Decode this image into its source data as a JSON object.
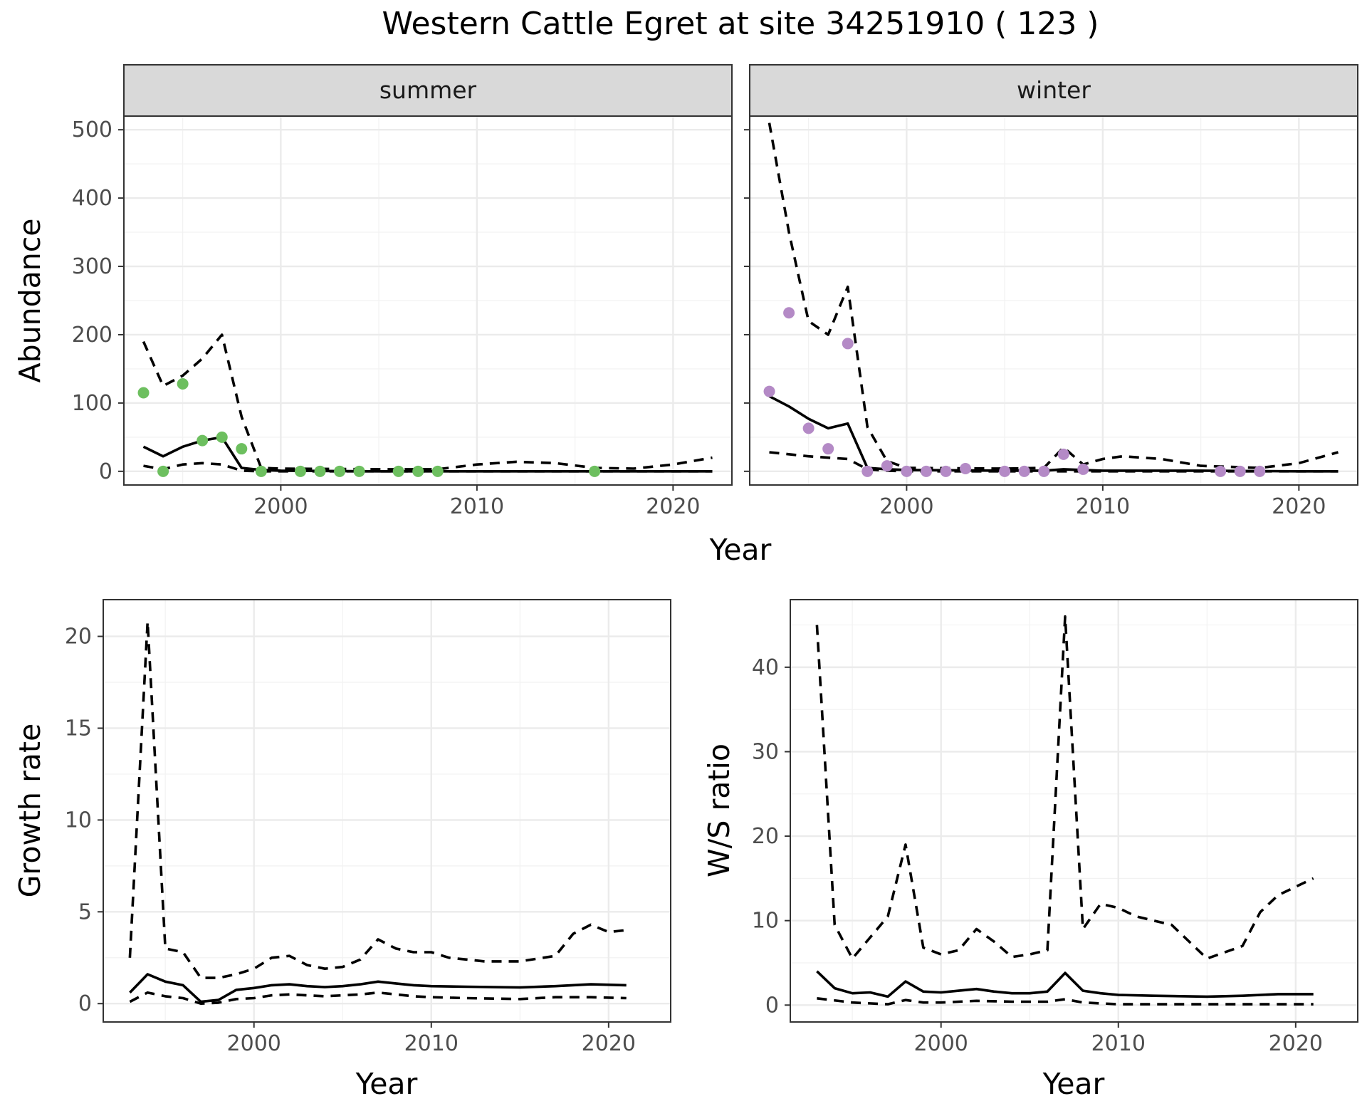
{
  "figure": {
    "title": "Western Cattle Egret at site 34251910 ( 123 )"
  },
  "chart_data": [
    {
      "type": "line",
      "panel": "summer",
      "facet_label": "summer",
      "xlabel": "Year",
      "ylabel": "Abundance",
      "xlim": [
        1992,
        2023
      ],
      "ylim": [
        -20,
        520
      ],
      "x_ticks": [
        2000,
        2010,
        2020
      ],
      "y_ticks": [
        0,
        100,
        200,
        300,
        400,
        500
      ],
      "grid": true,
      "point_color": "#6dbf5f",
      "series": [
        {
          "style": "solid",
          "x": [
            1993,
            1994,
            1995,
            1996,
            1997,
            1998,
            1999,
            2000,
            2005,
            2010,
            2015,
            2020,
            2022
          ],
          "y": [
            36,
            22,
            36,
            45,
            50,
            5,
            2,
            1,
            0,
            0,
            0,
            0,
            0
          ]
        },
        {
          "style": "dashed",
          "x": [
            1993,
            1994,
            1995,
            1996,
            1997,
            1998,
            1999,
            2000,
            2005,
            2008,
            2010,
            2012,
            2014,
            2016,
            2018,
            2020,
            2022
          ],
          "y": [
            190,
            125,
            140,
            165,
            200,
            80,
            5,
            4,
            3,
            3,
            10,
            14,
            12,
            5,
            4,
            10,
            20
          ]
        },
        {
          "style": "dashed",
          "x": [
            1993,
            1994,
            1995,
            1996,
            1997,
            1998,
            1999,
            2000,
            2010,
            2022
          ],
          "y": [
            8,
            3,
            10,
            12,
            10,
            1,
            0,
            0,
            0,
            0
          ]
        },
        {
          "style": "points",
          "x": [
            1993,
            1994,
            1995,
            1996,
            1997,
            1998,
            1999,
            2001,
            2002,
            2003,
            2004,
            2006,
            2007,
            2008,
            2016
          ],
          "y": [
            115,
            0,
            128,
            45,
            50,
            33,
            0,
            0,
            0,
            0,
            0,
            0,
            0,
            0,
            0
          ]
        }
      ]
    },
    {
      "type": "line",
      "panel": "winter",
      "facet_label": "winter",
      "xlabel": "Year",
      "ylabel": "Abundance",
      "xlim": [
        1992,
        2023
      ],
      "ylim": [
        -20,
        520
      ],
      "x_ticks": [
        2000,
        2010,
        2020
      ],
      "y_ticks": [
        0,
        100,
        200,
        300,
        400,
        500
      ],
      "grid": true,
      "point_color": "#b48ac6",
      "series": [
        {
          "style": "solid",
          "x": [
            1993,
            1994,
            1995,
            1996,
            1997,
            1998,
            1999,
            2000,
            2005,
            2007,
            2008,
            2009,
            2010,
            2015,
            2020,
            2022
          ],
          "y": [
            110,
            95,
            77,
            63,
            70,
            5,
            3,
            2,
            1,
            1,
            3,
            2,
            1,
            1,
            0,
            0
          ]
        },
        {
          "style": "dashed",
          "x": [
            1993,
            1994,
            1995,
            1996,
            1997,
            1998,
            1999,
            2000,
            2005,
            2007,
            2008,
            2009,
            2010,
            2011,
            2013,
            2015,
            2018,
            2020,
            2022
          ],
          "y": [
            510,
            350,
            220,
            200,
            270,
            65,
            15,
            5,
            4,
            5,
            35,
            10,
            18,
            22,
            18,
            8,
            5,
            12,
            28
          ]
        },
        {
          "style": "dashed",
          "x": [
            1993,
            1995,
            1997,
            1998,
            1999,
            2000,
            2010,
            2022
          ],
          "y": [
            28,
            22,
            18,
            3,
            1,
            0,
            0,
            0
          ]
        },
        {
          "style": "points",
          "x": [
            1993,
            1994,
            1995,
            1996,
            1997,
            1998,
            1999,
            2000,
            2001,
            2002,
            2003,
            2005,
            2006,
            2007,
            2008,
            2009,
            2016,
            2017,
            2018
          ],
          "y": [
            117,
            232,
            63,
            33,
            187,
            0,
            8,
            0,
            0,
            0,
            4,
            0,
            0,
            0,
            25,
            3,
            0,
            0,
            0
          ]
        }
      ]
    },
    {
      "type": "line",
      "panel": "growth",
      "xlabel": "Year",
      "ylabel": "Growth rate",
      "xlim": [
        1991.5,
        2023.5
      ],
      "ylim": [
        -1,
        22
      ],
      "x_ticks": [
        2000,
        2010,
        2020
      ],
      "y_ticks": [
        0,
        5,
        10,
        15,
        20
      ],
      "grid": true,
      "series": [
        {
          "style": "solid",
          "x": [
            1993,
            1994,
            1995,
            1996,
            1997,
            1998,
            1999,
            2000,
            2001,
            2002,
            2003,
            2004,
            2005,
            2006,
            2007,
            2008,
            2009,
            2010,
            2012,
            2015,
            2017,
            2019,
            2021
          ],
          "y": [
            0.6,
            1.6,
            1.2,
            1.0,
            0.1,
            0.2,
            0.75,
            0.85,
            1.0,
            1.05,
            0.95,
            0.9,
            0.95,
            1.05,
            1.2,
            1.1,
            1.0,
            0.95,
            0.92,
            0.88,
            0.95,
            1.05,
            1.0
          ]
        },
        {
          "style": "dashed",
          "x": [
            1993,
            1994,
            1995,
            1996,
            1997,
            1998,
            1999,
            2000,
            2001,
            2002,
            2003,
            2004,
            2005,
            2006,
            2007,
            2008,
            2009,
            2010,
            2011,
            2013,
            2015,
            2017,
            2018,
            2019,
            2020,
            2021
          ],
          "y": [
            2.5,
            20.8,
            3.0,
            2.8,
            1.4,
            1.4,
            1.6,
            1.9,
            2.5,
            2.6,
            2.1,
            1.9,
            2.0,
            2.4,
            3.5,
            3.0,
            2.8,
            2.8,
            2.5,
            2.3,
            2.3,
            2.6,
            3.8,
            4.3,
            3.9,
            4.0
          ]
        },
        {
          "style": "dashed",
          "x": [
            1993,
            1994,
            1995,
            1996,
            1997,
            1998,
            1999,
            2000,
            2001,
            2002,
            2003,
            2004,
            2005,
            2006,
            2007,
            2008,
            2009,
            2010,
            2012,
            2015,
            2017,
            2019,
            2021
          ],
          "y": [
            0.1,
            0.6,
            0.4,
            0.3,
            0.0,
            0.05,
            0.25,
            0.3,
            0.45,
            0.5,
            0.45,
            0.4,
            0.45,
            0.5,
            0.6,
            0.5,
            0.4,
            0.35,
            0.3,
            0.25,
            0.35,
            0.35,
            0.3
          ]
        }
      ]
    },
    {
      "type": "line",
      "panel": "ratio",
      "xlabel": "Year",
      "ylabel": "W/S ratio",
      "xlim": [
        1991.5,
        2023.5
      ],
      "ylim": [
        -2,
        48
      ],
      "x_ticks": [
        2000,
        2010,
        2020
      ],
      "y_ticks": [
        0,
        10,
        20,
        30,
        40
      ],
      "grid": true,
      "series": [
        {
          "style": "solid",
          "x": [
            1993,
            1994,
            1995,
            1996,
            1997,
            1998,
            1999,
            2000,
            2001,
            2002,
            2003,
            2004,
            2005,
            2006,
            2007,
            2008,
            2009,
            2010,
            2012,
            2015,
            2017,
            2019,
            2021
          ],
          "y": [
            4.0,
            2.0,
            1.4,
            1.5,
            1.0,
            2.8,
            1.6,
            1.5,
            1.7,
            1.9,
            1.6,
            1.4,
            1.4,
            1.6,
            3.8,
            1.7,
            1.4,
            1.2,
            1.1,
            1.0,
            1.1,
            1.3,
            1.3
          ]
        },
        {
          "style": "dashed",
          "x": [
            1993,
            1994,
            1995,
            1996,
            1997,
            1998,
            1999,
            2000,
            2001,
            2002,
            2003,
            2004,
            2005,
            2006,
            2007,
            2008,
            2009,
            2010,
            2011,
            2013,
            2015,
            2017,
            2018,
            2019,
            2020,
            2021
          ],
          "y": [
            45,
            9.5,
            5.5,
            8,
            10.5,
            19,
            6.8,
            6,
            6.5,
            9,
            7.5,
            5.7,
            6,
            6.5,
            46,
            9,
            12,
            11.5,
            10.5,
            9.5,
            5.5,
            7,
            11,
            13,
            14,
            15
          ]
        },
        {
          "style": "dashed",
          "x": [
            1993,
            1995,
            1997,
            1998,
            1999,
            2000,
            2002,
            2004,
            2006,
            2007,
            2008,
            2010,
            2015,
            2021
          ],
          "y": [
            0.8,
            0.3,
            0.1,
            0.6,
            0.3,
            0.3,
            0.5,
            0.4,
            0.4,
            0.7,
            0.3,
            0.1,
            0.1,
            0.1
          ]
        }
      ]
    }
  ]
}
